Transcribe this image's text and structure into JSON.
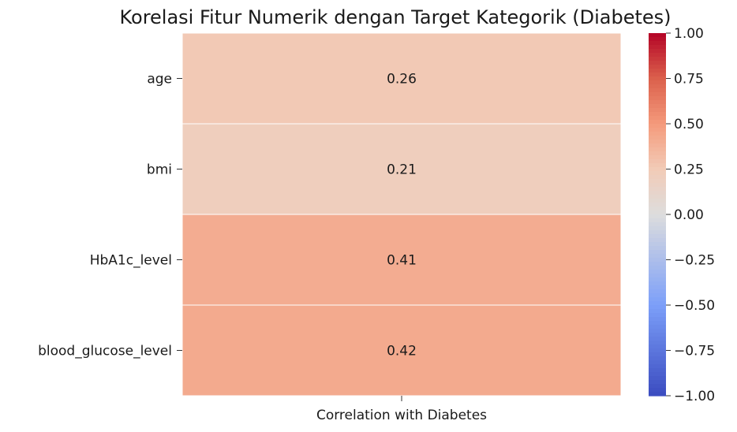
{
  "chart_data": {
    "type": "heatmap",
    "title": "Korelasi Fitur Numerik dengan Target Kategorik (Diabetes)",
    "columns": [
      "Correlation with Diabetes"
    ],
    "rows": [
      "age",
      "bmi",
      "HbA1c_level",
      "blood_glucose_level"
    ],
    "values": [
      0.26,
      0.21,
      0.41,
      0.42
    ],
    "value_labels": [
      "0.26",
      "0.21",
      "0.41",
      "0.42"
    ],
    "colormap": "coolwarm",
    "vmin": -1.0,
    "vmax": 1.0,
    "colorbar_ticks": [
      1.0,
      0.75,
      0.5,
      0.25,
      0.0,
      -0.25,
      -0.5,
      -0.75,
      -1.0
    ],
    "colorbar_tick_labels": [
      "1.00",
      "0.75",
      "0.50",
      "0.25",
      "0.00",
      "−0.25",
      "−0.50",
      "−0.75",
      "−1.00"
    ],
    "colorbar_placement": "right",
    "colors": {
      "low": "#3b4cc0",
      "mid": "#dddddd",
      "high": "#b40426"
    }
  }
}
